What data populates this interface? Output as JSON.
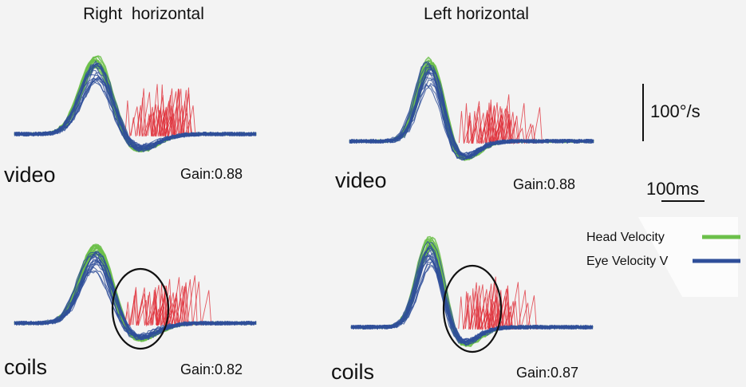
{
  "figure": {
    "columns": [
      {
        "title": "Right  horizontal"
      },
      {
        "title": "Left horizontal"
      }
    ],
    "rows": [
      {
        "label": "video"
      },
      {
        "label": "coils"
      }
    ],
    "scale_bars": {
      "velocity_label": "100°/s",
      "time_label": "100ms"
    },
    "legend": [
      {
        "label": "Head Velocity",
        "color": "#6cc04a"
      },
      {
        "label": "Eye Velocity V",
        "color": "#2f4f9a"
      }
    ],
    "colors": {
      "head": "#6cc04a",
      "eye": "#2f4f9a",
      "saccade": "#e0303a",
      "background": "#f3f3f3"
    }
  },
  "chart_data": [
    {
      "type": "line",
      "panel": "Right horizontal / video",
      "gain_label": "Gain:0.88",
      "gain": 0.88,
      "series": [
        {
          "name": "Head Velocity",
          "peak": 100
        },
        {
          "name": "Eye Velocity V",
          "peak": 92
        }
      ],
      "corrective_saccades": true,
      "highlight_ellipse": false
    },
    {
      "type": "line",
      "panel": "Left horizontal / video",
      "gain_label": "Gain:0.88",
      "gain": 0.88,
      "series": [
        {
          "name": "Head Velocity",
          "peak": 100
        },
        {
          "name": "Eye Velocity V",
          "peak": 94
        }
      ],
      "corrective_saccades": true,
      "highlight_ellipse": false
    },
    {
      "type": "line",
      "panel": "Right horizontal / coils",
      "gain_label": "Gain:0.82",
      "gain": 0.82,
      "series": [
        {
          "name": "Head Velocity",
          "peak": 100
        },
        {
          "name": "Eye Velocity V",
          "peak": 90
        }
      ],
      "corrective_saccades": true,
      "highlight_ellipse": true
    },
    {
      "type": "line",
      "panel": "Left horizontal / coils",
      "gain_label": "Gain:0.87",
      "gain": 0.87,
      "series": [
        {
          "name": "Head Velocity",
          "peak": 100
        },
        {
          "name": "Eye Velocity V",
          "peak": 93
        }
      ],
      "corrective_saccades": true,
      "highlight_ellipse": true
    }
  ]
}
